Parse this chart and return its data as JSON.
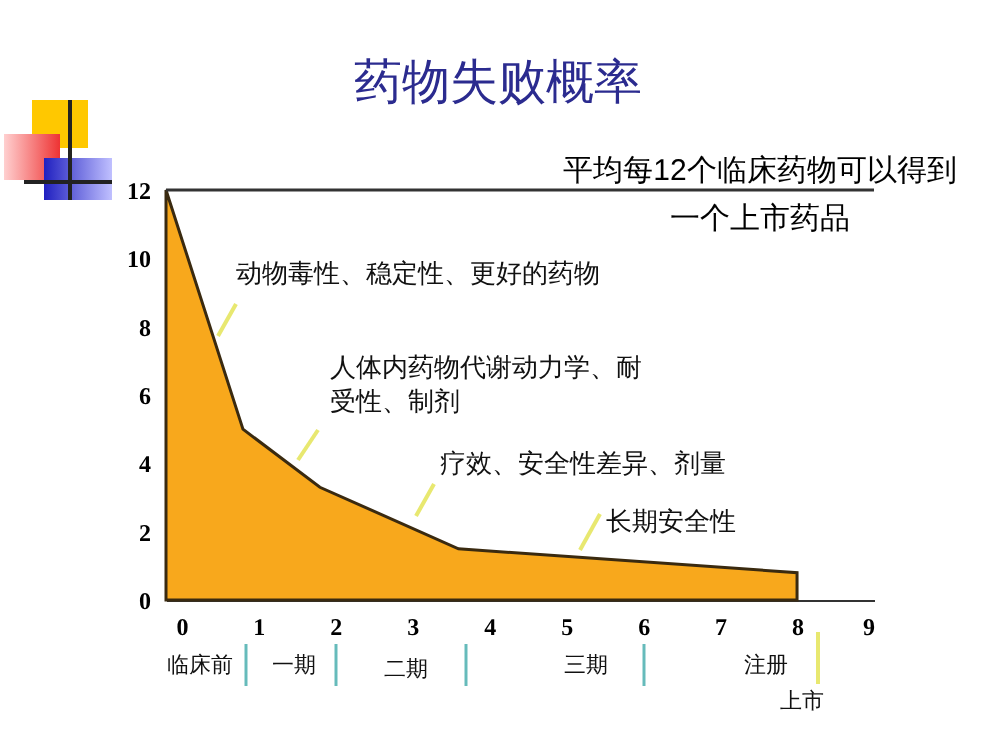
{
  "chart_data": {
    "type": "area",
    "title": "药物失败概率",
    "x": [
      -0.2,
      0.8,
      1.8,
      3.6,
      8
    ],
    "series": [
      {
        "color": "#f8a81c",
        "values": [
          12,
          5,
          3.3,
          1.5,
          0.8
        ]
      }
    ],
    "xlim": [
      -0.2,
      9
    ],
    "xticks": [
      0,
      1,
      2,
      3,
      4,
      5,
      6,
      7,
      8,
      9
    ],
    "ylim": [
      0,
      12
    ],
    "yticks": [
      0,
      2,
      4,
      6,
      8,
      10,
      12
    ],
    "grid": false,
    "ref_lines": [
      {
        "axis": "y",
        "value": 12,
        "label": "平均每12个临床药物可以得到一个上市药品"
      }
    ],
    "annotations": [
      "动物毒性、稳定性、更好的药物",
      "人体内药物代谢动力学、耐受性、制剂",
      "疗效、安全性差异、剂量",
      "长期安全性",
      "临床前",
      "一期",
      "二期",
      "三期",
      "注册",
      "上市"
    ]
  }
}
